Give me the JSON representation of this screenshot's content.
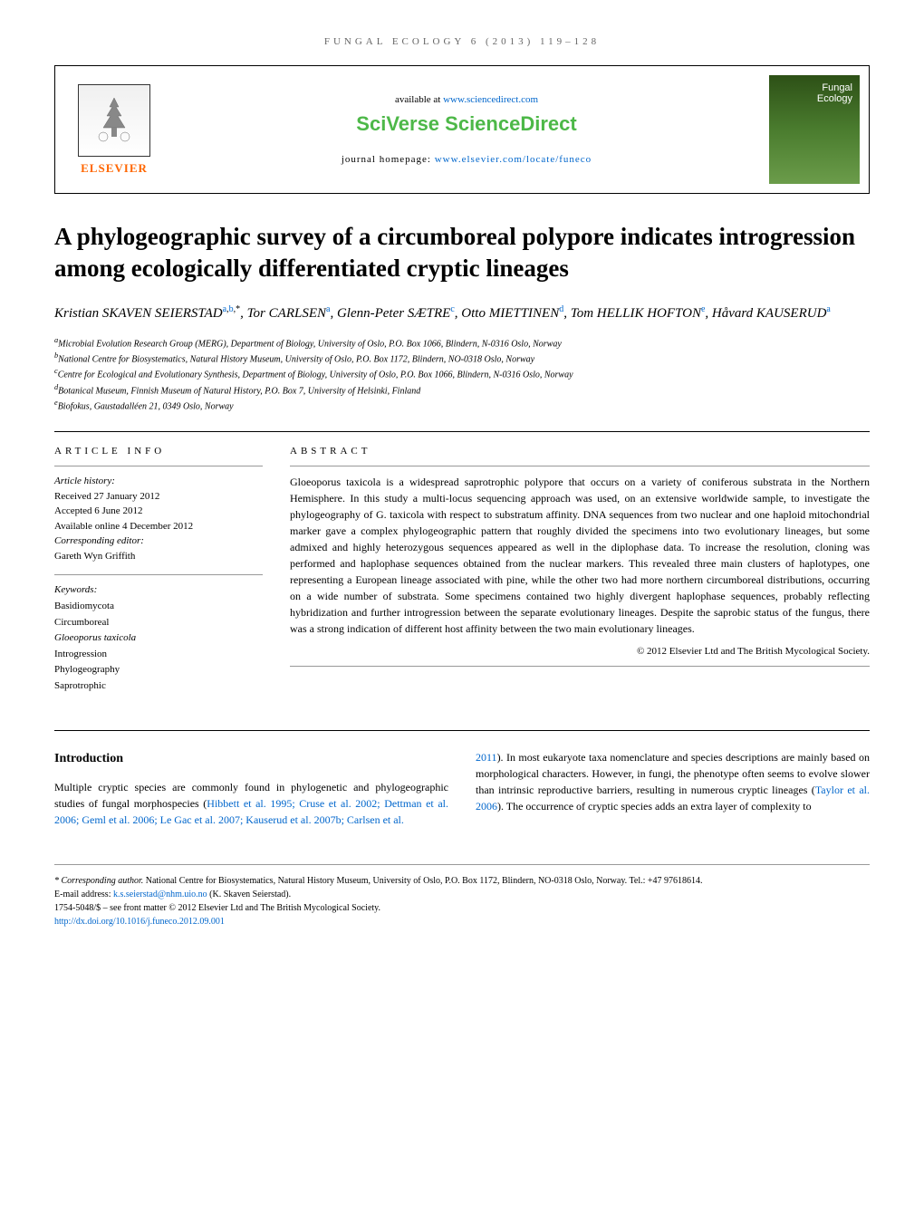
{
  "header_bar": "FUNGAL ECOLOGY 6 (2013) 119–128",
  "masthead": {
    "elsevier_label": "ELSEVIER",
    "available_prefix": "available at ",
    "available_url": "www.sciencedirect.com",
    "sciverse": "SciVerse ScienceDirect",
    "homepage_prefix": "journal homepage: ",
    "homepage_url": "www.elsevier.com/locate/funeco",
    "cover_line1": "Fungal",
    "cover_line2": "Ecology"
  },
  "title": "A phylogeographic survey of a circumboreal polypore indicates introgression among ecologically differentiated cryptic lineages",
  "authors": [
    {
      "name": "Kristian SKAVEN SEIERSTAD",
      "sup": "a,b,*"
    },
    {
      "name": "Tor CARLSEN",
      "sup": "a"
    },
    {
      "name": "Glenn-Peter SÆTRE",
      "sup": "c"
    },
    {
      "name": "Otto MIETTINEN",
      "sup": "d"
    },
    {
      "name": "Tom HELLIK HOFTON",
      "sup": "e"
    },
    {
      "name": "Håvard KAUSERUD",
      "sup": "a"
    }
  ],
  "affiliations": [
    {
      "key": "a",
      "text": "Microbial Evolution Research Group (MERG), Department of Biology, University of Oslo, P.O. Box 1066, Blindern, N-0316 Oslo, Norway"
    },
    {
      "key": "b",
      "text": "National Centre for Biosystematics, Natural History Museum, University of Oslo, P.O. Box 1172, Blindern, NO-0318 Oslo, Norway"
    },
    {
      "key": "c",
      "text": "Centre for Ecological and Evolutionary Synthesis, Department of Biology, University of Oslo, P.O. Box 1066, Blindern, N-0316 Oslo, Norway"
    },
    {
      "key": "d",
      "text": "Botanical Museum, Finnish Museum of Natural History, P.O. Box 7, University of Helsinki, Finland"
    },
    {
      "key": "e",
      "text": "Biofokus, Gaustadalléen 21, 0349 Oslo, Norway"
    }
  ],
  "info": {
    "heading": "ARTICLE INFO",
    "history_label": "Article history:",
    "received": "Received 27 January 2012",
    "accepted": "Accepted 6 June 2012",
    "online": "Available online 4 December 2012",
    "editor_label": "Corresponding editor:",
    "editor": "Gareth Wyn Griffith",
    "keywords_label": "Keywords:",
    "keywords": [
      "Basidiomycota",
      "Circumboreal",
      "Gloeoporus taxicola",
      "Introgression",
      "Phylogeography",
      "Saprotrophic"
    ]
  },
  "abstract": {
    "heading": "ABSTRACT",
    "text": "Gloeoporus taxicola is a widespread saprotrophic polypore that occurs on a variety of coniferous substrata in the Northern Hemisphere. In this study a multi-locus sequencing approach was used, on an extensive worldwide sample, to investigate the phylogeography of G. taxicola with respect to substratum affinity. DNA sequences from two nuclear and one haploid mitochondrial marker gave a complex phylogeographic pattern that roughly divided the specimens into two evolutionary lineages, but some admixed and highly heterozygous sequences appeared as well in the diplophase data. To increase the resolution, cloning was performed and haplophase sequences obtained from the nuclear markers. This revealed three main clusters of haplotypes, one representing a European lineage associated with pine, while the other two had more northern circumboreal distributions, occurring on a wide number of substrata. Some specimens contained two highly divergent haplophase sequences, probably reflecting hybridization and further introgression between the separate evolutionary lineages. Despite the saprobic status of the fungus, there was a strong indication of different host affinity between the two main evolutionary lineages.",
    "copyright": "© 2012 Elsevier Ltd and The British Mycological Society."
  },
  "body": {
    "intro_heading": "Introduction",
    "col1": "Multiple cryptic species are commonly found in phylogenetic and phylogeographic studies of fungal morphospecies (",
    "col1_refs": "Hibbett et al. 1995; Cruse et al. 2002; Dettman et al. 2006; Geml et al. 2006; Le Gac et al. 2007; Kauserud et al. 2007b; Carlsen et al.",
    "col2_ref": "2011",
    "col2": "). In most eukaryote taxa nomenclature and species descriptions are mainly based on morphological characters. However, in fungi, the phenotype often seems to evolve slower than intrinsic reproductive barriers, resulting in numerous cryptic lineages (",
    "col2_ref2": "Taylor et al. 2006",
    "col2_end": "). The occurrence of cryptic species adds an extra layer of complexity to"
  },
  "footer": {
    "corresponding_label": "* Corresponding author.",
    "corresponding_text": " National Centre for Biosystematics, Natural History Museum, University of Oslo, P.O. Box 1172, Blindern, NO-0318 Oslo, Norway. Tel.: +47 97618614.",
    "email_label": "E-mail address: ",
    "email": "k.s.seierstad@nhm.uio.no",
    "email_suffix": " (K. Skaven Seierstad).",
    "issn": "1754-5048/$ – see front matter © 2012 Elsevier Ltd and The British Mycological Society.",
    "doi": "http://dx.doi.org/10.1016/j.funeco.2012.09.001"
  },
  "colors": {
    "link": "#0066cc",
    "sciverse_green": "#4db848",
    "elsevier_orange": "#ff6600"
  }
}
